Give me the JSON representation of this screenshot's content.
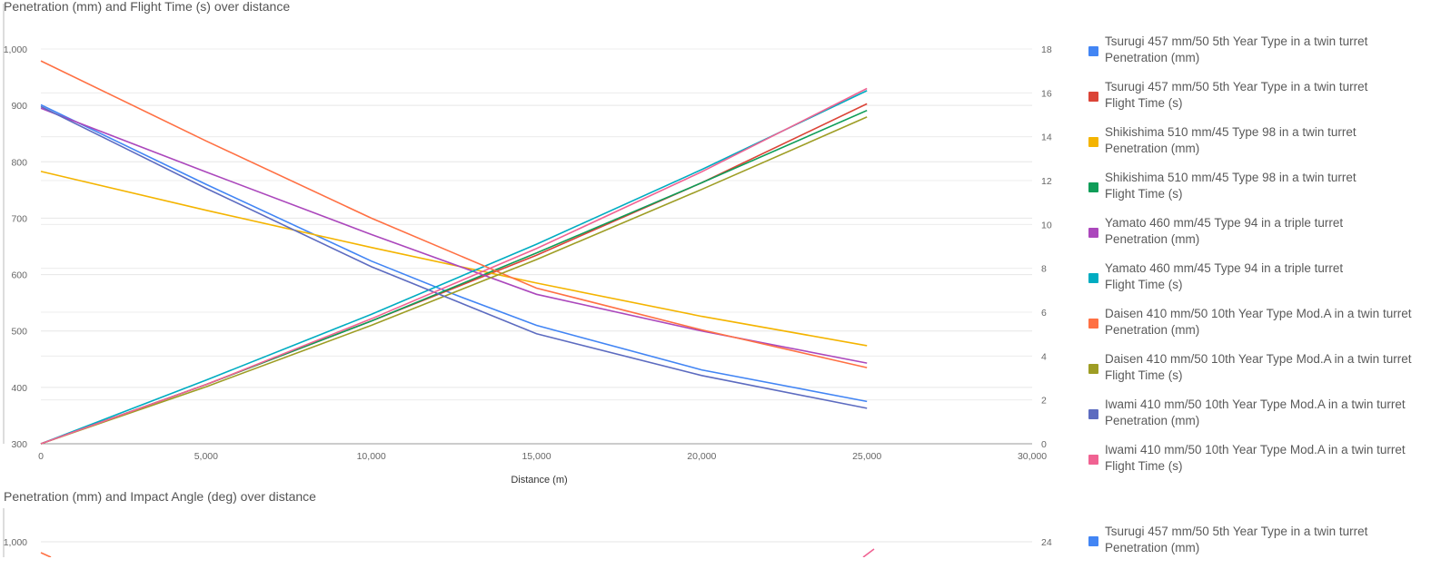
{
  "chart_data": [
    {
      "type": "line",
      "title": "Penetration (mm) and Flight Time (s) over distance",
      "xlabel": "Distance (m)",
      "xlim": [
        0,
        30000
      ],
      "x_ticks": [
        "0",
        "5,000",
        "10,000",
        "15,000",
        "20,000",
        "25,000",
        "30,000"
      ],
      "y_left_lim": [
        300,
        1000
      ],
      "y_left_ticks": [
        "300",
        "400",
        "500",
        "600",
        "700",
        "800",
        "900",
        "1,000"
      ],
      "y_right_lim": [
        0,
        18
      ],
      "y_right_ticks": [
        "0",
        "2",
        "4",
        "6",
        "8",
        "10",
        "12",
        "14",
        "16",
        "18"
      ],
      "grid": true,
      "legend_position": "right",
      "series": [
        {
          "name_line1": "Tsurugi 457 mm/50 5th Year Type in a twin turret",
          "name_line2": "Penetration (mm)",
          "axis": "left",
          "color": "#4285f4",
          "x": [
            0,
            5000,
            10000,
            12500,
            15000,
            20000,
            25000
          ],
          "y": [
            901,
            760,
            624,
            565,
            510,
            431,
            375
          ]
        },
        {
          "name_line1": "Tsurugi 457 mm/50 5th Year Type in a twin turret",
          "name_line2": "Flight Time (s)",
          "axis": "right",
          "color": "#db4437",
          "x": [
            0,
            5000,
            10000,
            15000,
            20000,
            25000
          ],
          "y": [
            0,
            2.7,
            5.6,
            8.6,
            11.9,
            15.5
          ]
        },
        {
          "name_line1": "Shikishima 510 mm/45 Type 98 in a twin turret",
          "name_line2": "Penetration (mm)",
          "axis": "left",
          "color": "#f4b400",
          "x": [
            0,
            5000,
            10000,
            15000,
            20000,
            25000
          ],
          "y": [
            783,
            714,
            648,
            585,
            526,
            474
          ]
        },
        {
          "name_line1": "Shikishima 510 mm/45 Type 98 in a twin turret",
          "name_line2": "Flight Time (s)",
          "axis": "right",
          "color": "#0f9d58",
          "x": [
            0,
            5000,
            10000,
            15000,
            20000,
            25000
          ],
          "y": [
            0,
            2.7,
            5.6,
            8.7,
            11.9,
            15.2
          ]
        },
        {
          "name_line1": "Yamato 460 mm/45 Type 94 in a triple turret",
          "name_line2": "Penetration (mm)",
          "axis": "left",
          "color": "#ab47bc",
          "x": [
            0,
            5000,
            10000,
            15000,
            20000,
            25000
          ],
          "y": [
            895,
            782,
            671,
            565,
            500,
            443
          ]
        },
        {
          "name_line1": "Yamato 460 mm/45 Type 94 in a triple turret",
          "name_line2": "Flight Time (s)",
          "axis": "right",
          "color": "#00acc1",
          "x": [
            0,
            5000,
            10000,
            15000,
            20000,
            25000
          ],
          "y": [
            0,
            2.9,
            5.9,
            9.1,
            12.5,
            16.1
          ]
        },
        {
          "name_line1": "Daisen 410 mm/50 10th Year Type Mod.A in a twin turret",
          "name_line2": "Penetration (mm)",
          "axis": "left",
          "color": "#ff7043",
          "x": [
            0,
            5000,
            10000,
            15000,
            20000,
            25000
          ],
          "y": [
            979,
            837,
            700,
            576,
            502,
            435
          ]
        },
        {
          "name_line1": "Daisen 410 mm/50 10th Year Type Mod.A in a twin turret",
          "name_line2": "Flight Time (s)",
          "axis": "right",
          "color": "#9e9d24",
          "x": [
            0,
            5000,
            10000,
            15000,
            20000,
            25000
          ],
          "y": [
            0,
            2.6,
            5.4,
            8.4,
            11.6,
            14.9
          ]
        },
        {
          "name_line1": "Iwami 410 mm/50 10th Year Type Mod.A in a twin turret",
          "name_line2": "Penetration (mm)",
          "axis": "left",
          "color": "#5c6bc0",
          "x": [
            0,
            5000,
            10000,
            15000,
            20000,
            25000
          ],
          "y": [
            898,
            753,
            614,
            495,
            421,
            363
          ]
        },
        {
          "name_line1": "Iwami 410 mm/50 10th Year Type Mod.A in a twin turret",
          "name_line2": "Flight Time (s)",
          "axis": "right",
          "color": "#f06292",
          "x": [
            0,
            5000,
            10000,
            15000,
            20000,
            25000
          ],
          "y": [
            0,
            2.7,
            5.7,
            8.9,
            12.4,
            16.2
          ]
        }
      ]
    },
    {
      "type": "line",
      "title": "Penetration (mm) and Impact Angle (deg) over distance",
      "y_left_ticks": [
        "1,000"
      ],
      "y_right_ticks": [
        "24"
      ],
      "legend_visible": [
        {
          "name_line1": "Tsurugi 457 mm/50 5th Year Type in a twin turret",
          "name_line2": "Penetration (mm)",
          "color": "#4285f4"
        }
      ]
    }
  ]
}
